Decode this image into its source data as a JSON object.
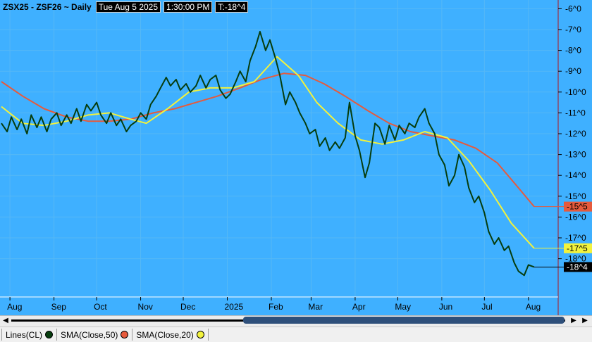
{
  "header": {
    "symbol": "ZSX25 - ZSF26 ~ Daily",
    "datetime": "Tue Aug 5 2025",
    "time": "1:30:00 PM",
    "last": "T:-18^4"
  },
  "colors": {
    "background": "#3fb0ff",
    "grid": "#56b8f6",
    "price": "#063d0e",
    "sma50": "#e65a3c",
    "sma20": "#f2f23c",
    "axis_line": "#b0151c"
  },
  "chart_data": {
    "type": "line",
    "y_ticks": [
      "-6^0",
      "-7^0",
      "-8^0",
      "-9^0",
      "-10^0",
      "-11^0",
      "-12^0",
      "-13^0",
      "-14^0",
      "-15^0",
      "-16^0",
      "-17^0",
      "-18^0"
    ],
    "y_tick_values": [
      -6,
      -7,
      -8,
      -9,
      -10,
      -11,
      -12,
      -13,
      -14,
      -15,
      -16,
      -17,
      -18
    ],
    "ylim": [
      -19.5,
      -5.75
    ],
    "x_ticks": [
      "Aug",
      "Sep",
      "Oct",
      "Nov",
      "Dec",
      "2025",
      "Feb",
      "Mar",
      "Apr",
      "May",
      "Jun",
      "Jul",
      "Aug"
    ],
    "x_tick_dates": [
      "2024-08-01",
      "2024-09-01",
      "2024-10-01",
      "2024-11-01",
      "2024-12-01",
      "2025-01-01",
      "2025-02-01",
      "2025-03-01",
      "2025-04-01",
      "2025-05-01",
      "2025-06-01",
      "2025-07-01",
      "2025-08-01"
    ],
    "xlim": [
      "2024-07-25",
      "2025-08-12"
    ],
    "grid": true,
    "series": [
      {
        "key": "close",
        "last_label": "-18^4",
        "points": [
          [
            "2024-07-26",
            -11.5
          ],
          [
            "2024-07-30",
            -11.9
          ],
          [
            "2024-08-02",
            -11.2
          ],
          [
            "2024-08-06",
            -11.8
          ],
          [
            "2024-08-09",
            -11.3
          ],
          [
            "2024-08-13",
            -12.0
          ],
          [
            "2024-08-16",
            -11.1
          ],
          [
            "2024-08-20",
            -11.7
          ],
          [
            "2024-08-23",
            -11.2
          ],
          [
            "2024-08-27",
            -11.9
          ],
          [
            "2024-08-30",
            -11.3
          ],
          [
            "2024-09-03",
            -11.0
          ],
          [
            "2024-09-06",
            -11.6
          ],
          [
            "2024-09-10",
            -11.1
          ],
          [
            "2024-09-13",
            -11.5
          ],
          [
            "2024-09-17",
            -10.8
          ],
          [
            "2024-09-20",
            -11.4
          ],
          [
            "2024-09-24",
            -10.6
          ],
          [
            "2024-09-27",
            -10.9
          ],
          [
            "2024-10-01",
            -10.5
          ],
          [
            "2024-10-04",
            -11.1
          ],
          [
            "2024-10-08",
            -11.5
          ],
          [
            "2024-10-11",
            -11.0
          ],
          [
            "2024-10-15",
            -11.6
          ],
          [
            "2024-10-18",
            -11.3
          ],
          [
            "2024-10-22",
            -11.9
          ],
          [
            "2024-10-25",
            -11.6
          ],
          [
            "2024-10-29",
            -11.4
          ],
          [
            "2024-11-01",
            -11.0
          ],
          [
            "2024-11-05",
            -11.3
          ],
          [
            "2024-11-08",
            -10.6
          ],
          [
            "2024-11-12",
            -10.2
          ],
          [
            "2024-11-15",
            -9.8
          ],
          [
            "2024-11-19",
            -9.3
          ],
          [
            "2024-11-22",
            -9.7
          ],
          [
            "2024-11-26",
            -9.4
          ],
          [
            "2024-11-29",
            -9.9
          ],
          [
            "2024-12-03",
            -9.6
          ],
          [
            "2024-12-06",
            -10.0
          ],
          [
            "2024-12-10",
            -9.7
          ],
          [
            "2024-12-13",
            -9.2
          ],
          [
            "2024-12-17",
            -9.8
          ],
          [
            "2024-12-20",
            -9.4
          ],
          [
            "2024-12-24",
            -9.2
          ],
          [
            "2024-12-27",
            -9.9
          ],
          [
            "2024-12-31",
            -10.3
          ],
          [
            "2025-01-03",
            -10.1
          ],
          [
            "2025-01-07",
            -9.5
          ],
          [
            "2025-01-10",
            -9.0
          ],
          [
            "2025-01-14",
            -9.5
          ],
          [
            "2025-01-17",
            -8.5
          ],
          [
            "2025-01-21",
            -7.8
          ],
          [
            "2025-01-24",
            -7.1
          ],
          [
            "2025-01-28",
            -8.0
          ],
          [
            "2025-01-31",
            -7.5
          ],
          [
            "2025-02-04",
            -8.4
          ],
          [
            "2025-02-07",
            -9.2
          ],
          [
            "2025-02-11",
            -10.6
          ],
          [
            "2025-02-14",
            -10.0
          ],
          [
            "2025-02-18",
            -10.5
          ],
          [
            "2025-02-21",
            -11.0
          ],
          [
            "2025-02-25",
            -11.5
          ],
          [
            "2025-02-28",
            -12.0
          ],
          [
            "2025-03-04",
            -11.8
          ],
          [
            "2025-03-07",
            -12.6
          ],
          [
            "2025-03-11",
            -12.2
          ],
          [
            "2025-03-14",
            -12.8
          ],
          [
            "2025-03-18",
            -12.4
          ],
          [
            "2025-03-21",
            -12.7
          ],
          [
            "2025-03-25",
            -12.2
          ],
          [
            "2025-03-28",
            -10.5
          ],
          [
            "2025-04-01",
            -12.1
          ],
          [
            "2025-04-04",
            -12.8
          ],
          [
            "2025-04-08",
            -14.1
          ],
          [
            "2025-04-11",
            -13.4
          ],
          [
            "2025-04-15",
            -11.5
          ],
          [
            "2025-04-18",
            -11.7
          ],
          [
            "2025-04-22",
            -12.5
          ],
          [
            "2025-04-25",
            -11.6
          ],
          [
            "2025-04-29",
            -12.3
          ],
          [
            "2025-05-02",
            -11.6
          ],
          [
            "2025-05-06",
            -12.0
          ],
          [
            "2025-05-09",
            -11.5
          ],
          [
            "2025-05-13",
            -11.7
          ],
          [
            "2025-05-16",
            -11.2
          ],
          [
            "2025-05-20",
            -10.8
          ],
          [
            "2025-05-23",
            -11.5
          ],
          [
            "2025-05-27",
            -12.0
          ],
          [
            "2025-05-30",
            -13.0
          ],
          [
            "2025-06-03",
            -13.5
          ],
          [
            "2025-06-06",
            -14.5
          ],
          [
            "2025-06-10",
            -14.0
          ],
          [
            "2025-06-13",
            -13.0
          ],
          [
            "2025-06-17",
            -13.6
          ],
          [
            "2025-06-20",
            -14.6
          ],
          [
            "2025-06-24",
            -15.3
          ],
          [
            "2025-06-27",
            -15.0
          ],
          [
            "2025-07-01",
            -15.8
          ],
          [
            "2025-07-04",
            -16.7
          ],
          [
            "2025-07-08",
            -17.3
          ],
          [
            "2025-07-11",
            -17.0
          ],
          [
            "2025-07-15",
            -17.6
          ],
          [
            "2025-07-18",
            -17.4
          ],
          [
            "2025-07-22",
            -18.2
          ],
          [
            "2025-07-25",
            -18.6
          ],
          [
            "2025-07-29",
            -18.8
          ],
          [
            "2025-08-01",
            -18.3
          ],
          [
            "2025-08-05",
            -18.4
          ]
        ]
      },
      {
        "key": "sma50",
        "last_label": "-15^5",
        "points": [
          [
            "2024-07-26",
            -9.5
          ],
          [
            "2024-08-10",
            -10.2
          ],
          [
            "2024-08-25",
            -10.8
          ],
          [
            "2024-09-10",
            -11.2
          ],
          [
            "2024-09-25",
            -11.4
          ],
          [
            "2024-10-10",
            -11.4
          ],
          [
            "2024-10-25",
            -11.3
          ],
          [
            "2024-11-10",
            -11.0
          ],
          [
            "2024-11-25",
            -10.8
          ],
          [
            "2024-12-10",
            -10.5
          ],
          [
            "2024-12-25",
            -10.2
          ],
          [
            "2025-01-10",
            -9.8
          ],
          [
            "2025-01-25",
            -9.4
          ],
          [
            "2025-02-10",
            -9.1
          ],
          [
            "2025-02-25",
            -9.2
          ],
          [
            "2025-03-10",
            -9.6
          ],
          [
            "2025-03-25",
            -10.2
          ],
          [
            "2025-04-10",
            -10.9
          ],
          [
            "2025-04-25",
            -11.5
          ],
          [
            "2025-05-10",
            -11.9
          ],
          [
            "2025-05-25",
            -12.1
          ],
          [
            "2025-06-10",
            -12.3
          ],
          [
            "2025-06-25",
            -12.7
          ],
          [
            "2025-07-10",
            -13.4
          ],
          [
            "2025-07-25",
            -14.6
          ],
          [
            "2025-08-05",
            -15.5
          ]
        ]
      },
      {
        "key": "sma20",
        "last_label": "-17^5",
        "points": [
          [
            "2024-07-26",
            -10.7
          ],
          [
            "2024-08-10",
            -11.5
          ],
          [
            "2024-08-25",
            -11.6
          ],
          [
            "2024-09-10",
            -11.4
          ],
          [
            "2024-09-25",
            -11.1
          ],
          [
            "2024-10-10",
            -11.0
          ],
          [
            "2024-10-25",
            -11.3
          ],
          [
            "2024-11-05",
            -11.5
          ],
          [
            "2024-11-20",
            -10.8
          ],
          [
            "2024-12-05",
            -10.0
          ],
          [
            "2024-12-20",
            -9.8
          ],
          [
            "2025-01-05",
            -9.8
          ],
          [
            "2025-01-20",
            -9.5
          ],
          [
            "2025-02-05",
            -8.3
          ],
          [
            "2025-02-20",
            -9.2
          ],
          [
            "2025-03-05",
            -10.5
          ],
          [
            "2025-03-20",
            -11.5
          ],
          [
            "2025-04-05",
            -12.3
          ],
          [
            "2025-04-20",
            -12.5
          ],
          [
            "2025-05-05",
            -12.3
          ],
          [
            "2025-05-20",
            -11.9
          ],
          [
            "2025-06-05",
            -12.2
          ],
          [
            "2025-06-20",
            -13.3
          ],
          [
            "2025-07-05",
            -14.7
          ],
          [
            "2025-07-20",
            -16.3
          ],
          [
            "2025-08-05",
            -17.5
          ]
        ]
      }
    ]
  },
  "legend": [
    {
      "label": "Lines(CL)",
      "color": "#063d0e"
    },
    {
      "label": "SMA(Close,50)",
      "color": "#e65a3c"
    },
    {
      "label": "SMA(Close,20)",
      "color": "#f2f23c"
    }
  ]
}
